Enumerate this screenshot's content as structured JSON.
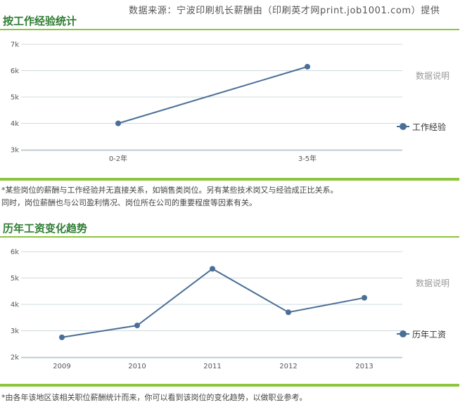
{
  "source_line": "数据来源：宁波印刷机长薪酬由（印刷英才网print.job1001.com）提供",
  "colors": {
    "title": "#2e7d32",
    "rule": "#8cc63f",
    "series": "#4a6f96",
    "grid": "#cfd8dc",
    "explain": "#999999"
  },
  "section1": {
    "title": "按工作经验统计",
    "explain": "数据说明",
    "legend_icon": "line-dot-marker",
    "notes": [
      "*某些岗位的薪酬与工作经验并无直接关系，如销售类岗位。另有某些技术岗又与经验成正比关系。",
      "同时，岗位薪酬也与公司盈利情况、岗位所在公司的重要程度等因素有关。"
    ]
  },
  "section2": {
    "title": "历年工资变化趋势",
    "explain": "数据说明",
    "legend_icon": "line-dot-marker",
    "notes": [
      "*由各年该地区该相关职位薪酬统计而来，你可以看到该岗位的变化趋势，以做职业参考。"
    ]
  },
  "chart_data": [
    {
      "type": "line",
      "categories": [
        "0-2年",
        "3-5年"
      ],
      "series": [
        {
          "name": "工作经验",
          "values": [
            4000,
            6150
          ]
        }
      ],
      "ylim": [
        3000,
        7000
      ],
      "yticks": [
        3000,
        4000,
        5000,
        6000,
        7000
      ],
      "ytick_labels": [
        "3k",
        "4k",
        "5k",
        "6k",
        "7k"
      ],
      "title": "",
      "xlabel": "",
      "ylabel": "",
      "grid": true,
      "legend": "right"
    },
    {
      "type": "line",
      "categories": [
        "2009",
        "2010",
        "2011",
        "2012",
        "2013"
      ],
      "series": [
        {
          "name": "历年工资",
          "values": [
            2750,
            3200,
            5350,
            3700,
            4250
          ]
        }
      ],
      "ylim": [
        2000,
        6000
      ],
      "yticks": [
        2000,
        3000,
        4000,
        5000,
        6000
      ],
      "ytick_labels": [
        "2k",
        "3k",
        "4k",
        "5k",
        "6k"
      ],
      "title": "",
      "xlabel": "",
      "ylabel": "",
      "grid": true,
      "legend": "right"
    }
  ]
}
